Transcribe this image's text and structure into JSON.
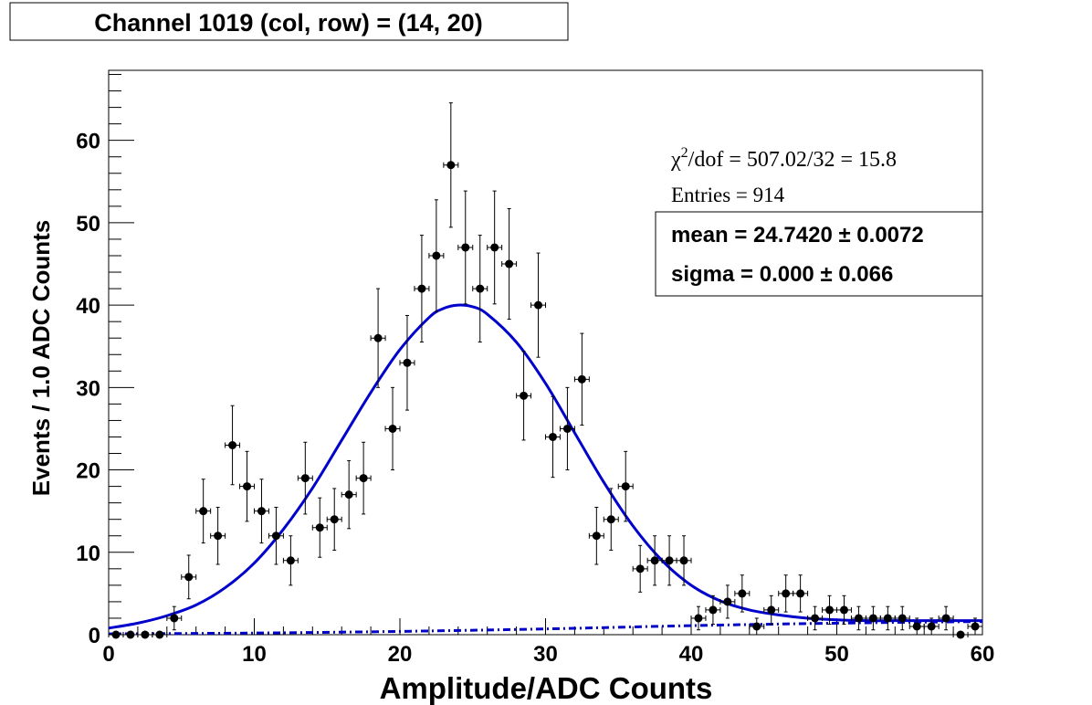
{
  "title": "Channel 1019   (col, row) = (14, 20)",
  "stats": {
    "chi2_label": "χ",
    "chi2_sup": "2",
    "chi2_rest": "/dof = 507.02/32 = 15.8",
    "entries": "Entries = 914",
    "mean": "mean =  24.7420  ± 0.0072",
    "sigma": "sigma =  0.000  ± 0.066"
  },
  "chart_data": {
    "type": "scatter",
    "title": "Channel 1019   (col, row) = (14, 20)",
    "xlabel": "Amplitude/ADC Counts",
    "ylabel": "Events / 1.0 ADC Counts",
    "xlim": [
      0,
      60
    ],
    "ylim": [
      0,
      68.5
    ],
    "x_ticks": [
      0,
      10,
      20,
      30,
      40,
      50,
      60
    ],
    "x_tick_labels": [
      "0",
      "10",
      "20",
      "30",
      "40",
      "50",
      "60"
    ],
    "y_ticks": [
      0,
      10,
      20,
      30,
      40,
      50,
      60
    ],
    "y_tick_labels": [
      "0",
      "10",
      "20",
      "30",
      "40",
      "50",
      "60"
    ],
    "grid": false,
    "colors": {
      "data": "#000000",
      "fit": "#0000cc",
      "background": "#0000cc"
    },
    "series": [
      {
        "values_x": [
          0.5,
          1.5,
          2.5,
          3.5,
          4.5,
          5.5,
          6.5,
          7.5,
          8.5,
          9.5,
          10.5,
          11.5,
          12.5,
          13.5,
          14.5,
          15.5,
          16.5,
          17.5,
          18.5,
          19.5,
          20.5,
          21.5,
          22.5,
          23.5,
          24.5,
          25.5,
          26.5,
          27.5,
          28.5,
          29.5,
          30.5,
          31.5,
          32.5,
          33.5,
          34.5,
          35.5,
          36.5,
          37.5,
          38.5,
          39.5,
          40.5,
          41.5,
          42.5,
          43.5,
          44.5,
          45.5,
          46.5,
          47.5,
          48.5,
          49.5,
          50.5,
          51.5,
          52.5,
          53.5,
          54.5,
          55.5,
          56.5,
          57.5,
          58.5,
          59.5
        ],
        "values_y": [
          0,
          0,
          0,
          0,
          2,
          7,
          15,
          12,
          23,
          18,
          15,
          12,
          9,
          19,
          13,
          14,
          17,
          19,
          36,
          25,
          33,
          42,
          46,
          57,
          47,
          42,
          47,
          45,
          29,
          40,
          24,
          25,
          31,
          12,
          14,
          18,
          8,
          9,
          9,
          9,
          2,
          3,
          4,
          5,
          1,
          3,
          5,
          5,
          2,
          3,
          3,
          2,
          2,
          2,
          2,
          1,
          1,
          2,
          0,
          1
        ]
      },
      {
        "name_hidden": "fit",
        "type": "line",
        "x": [
          0,
          2,
          4,
          6,
          8,
          10,
          12,
          14,
          16,
          18,
          20,
          22,
          23,
          24,
          25,
          26,
          28,
          30,
          32,
          34,
          36,
          38,
          40,
          42,
          44,
          46,
          48,
          50,
          52,
          54,
          56,
          58,
          60
        ],
        "y": [
          0.8,
          1.4,
          2.3,
          3.6,
          5.7,
          8.7,
          12.8,
          17.8,
          23.6,
          29.4,
          34.6,
          38.5,
          39.6,
          40.0,
          39.8,
          38.9,
          35.5,
          30.5,
          24.5,
          18.5,
          13.2,
          9.0,
          6.0,
          4.1,
          3.0,
          2.4,
          2.0,
          1.8,
          1.7,
          1.7,
          1.7,
          1.7,
          1.7
        ]
      },
      {
        "name_hidden": "background",
        "type": "line",
        "style": "dashed",
        "x": [
          0,
          10,
          20,
          30,
          40,
          50,
          60
        ],
        "y": [
          0.1,
          0.2,
          0.4,
          0.7,
          1.1,
          1.4,
          1.6
        ]
      }
    ]
  }
}
